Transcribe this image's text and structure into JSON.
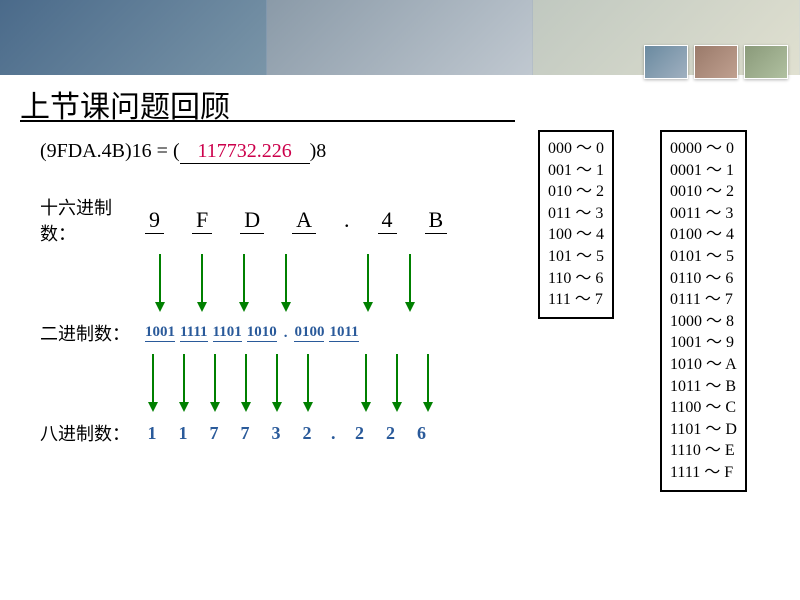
{
  "title": "上节课问题回顾",
  "equation": {
    "lhs": "(9FDA.4B)16 = (",
    "answer": "117732.226",
    "rhs": ")8"
  },
  "labels": {
    "hex": "十六进制数：",
    "bin": "二进制数：",
    "oct": "八进制数："
  },
  "hex_digits": [
    "9",
    "F",
    "D",
    "A",
    ".",
    "4",
    "B"
  ],
  "bin_groups": [
    "1001",
    "1111",
    "1101",
    "1010",
    ".",
    "0100",
    "1011"
  ],
  "oct_digits": [
    "1",
    "1",
    "7",
    "7",
    "3",
    "2",
    ".",
    "2",
    "2",
    "6"
  ],
  "ref_octal": [
    "000 ～ 0",
    "001 ～ 1",
    "010 ～ 2",
    "011 ～ 3",
    "100 ～ 4",
    "101 ～ 5",
    "110 ～ 6",
    "111 ～ 7"
  ],
  "ref_hex": [
    "0000 ～ 0",
    "0001 ～ 1",
    "0010 ～ 2",
    "0011 ～ 3",
    "0100 ～ 4",
    "0101 ～ 5",
    "0110 ～ 6",
    "0111 ～ 7",
    "1000 ～ 8",
    "1001 ～ 9",
    "1010 ～ A",
    "1011 ～ B",
    "1100 ～ C",
    "1101 ～ D",
    "1110 ～ E",
    "1111 ～ F"
  ],
  "arrow_color": "#008000",
  "arrow_height_1": 58,
  "arrow_height_2": 58
}
